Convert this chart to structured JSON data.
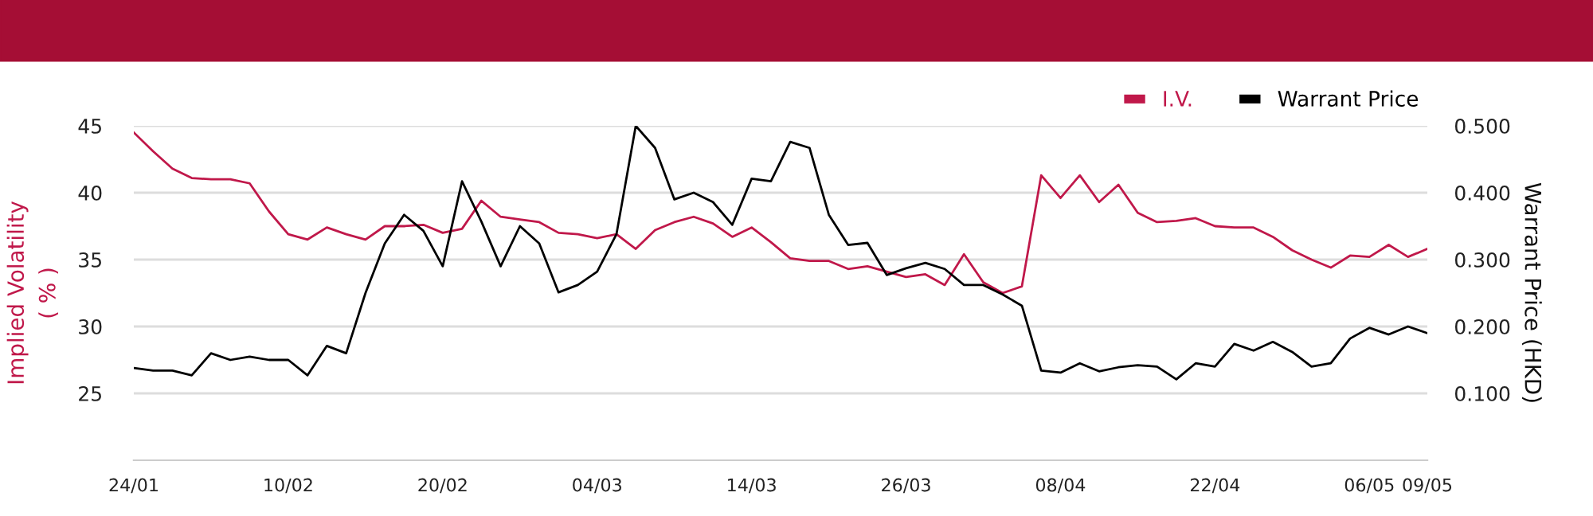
{
  "chart_data": {
    "type": "line",
    "ylabel": "Implied Volatility\n( % )",
    "y2label": "Warrant Price (HKD)",
    "categories": [
      "24/01",
      null,
      null,
      null,
      null,
      null,
      null,
      null,
      "10/02",
      null,
      null,
      null,
      null,
      null,
      null,
      null,
      "20/02",
      null,
      null,
      null,
      null,
      null,
      null,
      null,
      "04/03",
      null,
      null,
      null,
      null,
      null,
      null,
      null,
      "14/03",
      null,
      null,
      null,
      null,
      null,
      null,
      null,
      "26/03",
      null,
      null,
      null,
      null,
      null,
      null,
      null,
      "08/04",
      null,
      null,
      null,
      null,
      null,
      null,
      null,
      "22/04",
      null,
      null,
      null,
      null,
      null,
      null,
      null,
      "06/05",
      null,
      null,
      "09/05"
    ],
    "series": [
      {
        "name": "I.V.",
        "color": "#c0184a",
        "values": [
          44.5,
          43.1,
          41.8,
          41.1,
          41.0,
          41.0,
          40.7,
          38.6,
          36.9,
          36.5,
          37.4,
          36.9,
          36.5,
          37.5,
          37.5,
          37.6,
          37.0,
          37.3,
          39.4,
          38.2,
          38.0,
          37.8,
          37.0,
          36.9,
          36.6,
          36.9,
          35.8,
          37.2,
          37.8,
          38.2,
          37.7,
          36.7,
          37.4,
          36.3,
          35.1,
          34.9,
          34.9,
          34.3,
          34.5,
          34.1,
          33.7,
          33.9,
          33.1,
          35.4,
          33.3,
          32.5,
          33.0,
          41.3,
          39.6,
          41.3,
          39.3,
          40.6,
          38.5,
          37.8,
          37.9,
          38.1,
          37.5,
          37.4,
          37.4,
          36.7,
          35.7,
          35.0,
          34.4,
          35.3,
          35.2,
          36.1,
          35.2,
          35.8
        ]
      },
      {
        "name": "Warrant Price",
        "color": "#000000",
        "axis": "y2",
        "values": [
          0.138,
          0.134,
          0.134,
          0.127,
          0.16,
          0.15,
          0.155,
          0.15,
          0.15,
          0.127,
          0.171,
          0.16,
          0.25,
          0.324,
          0.367,
          0.343,
          0.29,
          0.417,
          0.357,
          0.29,
          0.35,
          0.324,
          0.251,
          0.262,
          0.282,
          0.338,
          0.5,
          0.467,
          0.39,
          0.4,
          0.386,
          0.352,
          0.421,
          0.417,
          0.476,
          0.467,
          0.367,
          0.322,
          0.325,
          0.277,
          0.287,
          0.295,
          0.286,
          0.262,
          0.262,
          0.248,
          0.231,
          0.134,
          0.131,
          0.145,
          0.133,
          0.139,
          0.142,
          0.14,
          0.121,
          0.145,
          0.14,
          0.174,
          0.164,
          0.177,
          0.162,
          0.14,
          0.145,
          0.182,
          0.198,
          0.188,
          0.2,
          0.19
        ]
      }
    ],
    "ylim": [
      20,
      45
    ],
    "yticks": [
      25,
      30,
      35,
      40,
      45
    ],
    "y2lim": [
      0,
      0.5
    ],
    "y2ticks": [
      {
        "value": 0.1,
        "label": "0.100"
      },
      {
        "value": 0.2,
        "label": "0.200"
      },
      {
        "value": 0.3,
        "label": "0.300"
      },
      {
        "value": 0.4,
        "label": "0.400"
      },
      {
        "value": 0.5,
        "label": "0.500"
      }
    ],
    "grid": "y",
    "legend": "top right",
    "marker": "none",
    "line_style": "solid"
  }
}
